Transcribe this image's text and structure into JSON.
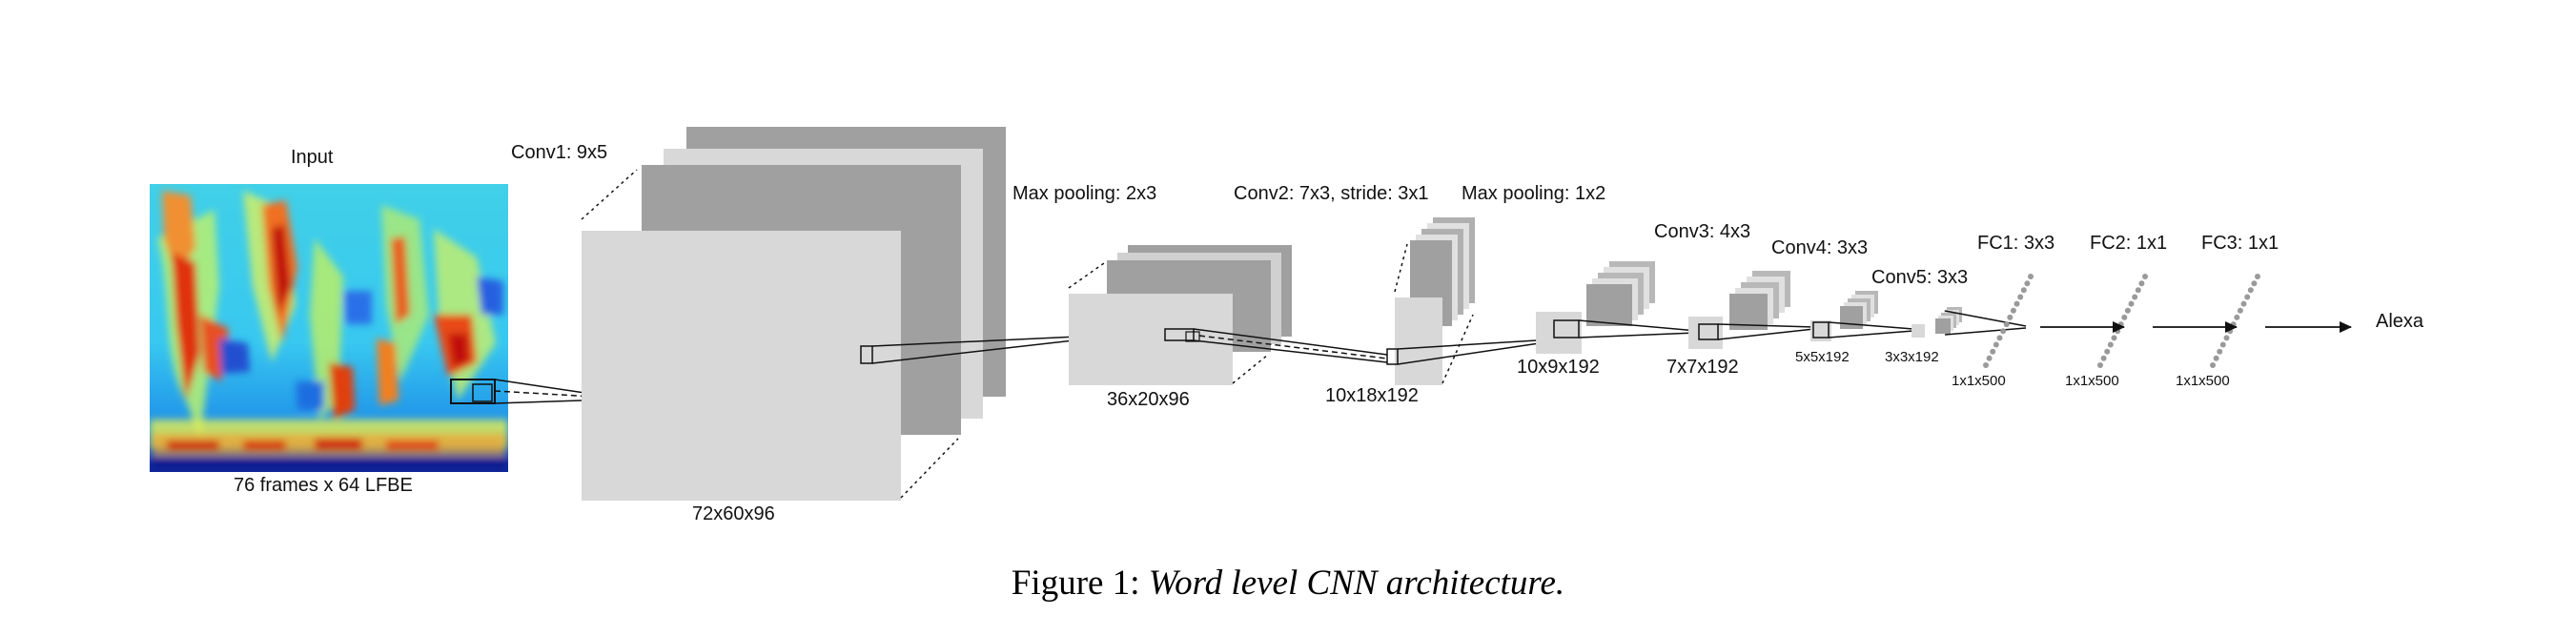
{
  "diagram": {
    "input": {
      "title": "Input",
      "caption": "76 frames x 64 LFBE"
    },
    "layers": [
      {
        "id": "conv1",
        "label": "Conv1: 9x5",
        "shape": "72x60x96"
      },
      {
        "id": "maxpool1",
        "label": "Max pooling: 2x3",
        "shape": "36x20x96"
      },
      {
        "id": "conv2",
        "label": "Conv2: 7x3, stride: 3x1",
        "shape": "10x18x192"
      },
      {
        "id": "maxpool2",
        "label": "Max pooling: 1x2",
        "shape": "10x9x192"
      },
      {
        "id": "conv3",
        "label": "Conv3: 4x3",
        "shape": "7x7x192"
      },
      {
        "id": "conv4",
        "label": "Conv4: 3x3",
        "shape": "5x5x192"
      },
      {
        "id": "conv5",
        "label": "Conv5: 3x3",
        "shape": "3x3x192"
      },
      {
        "id": "fc1",
        "label": "FC1: 3x3",
        "shape": "1x1x500"
      },
      {
        "id": "fc2",
        "label": "FC2: 1x1",
        "shape": "1x1x500"
      },
      {
        "id": "fc3",
        "label": "FC3: 1x1",
        "shape": "1x1x500"
      }
    ],
    "output": "Alexa"
  },
  "caption": {
    "prefix": "Figure 1:",
    "text": "Word level CNN architecture."
  },
  "colors": {
    "light_gray": "#d8d8d8",
    "mid_gray": "#a0a0a0",
    "dark_gray": "#909090",
    "line": "#111111"
  }
}
